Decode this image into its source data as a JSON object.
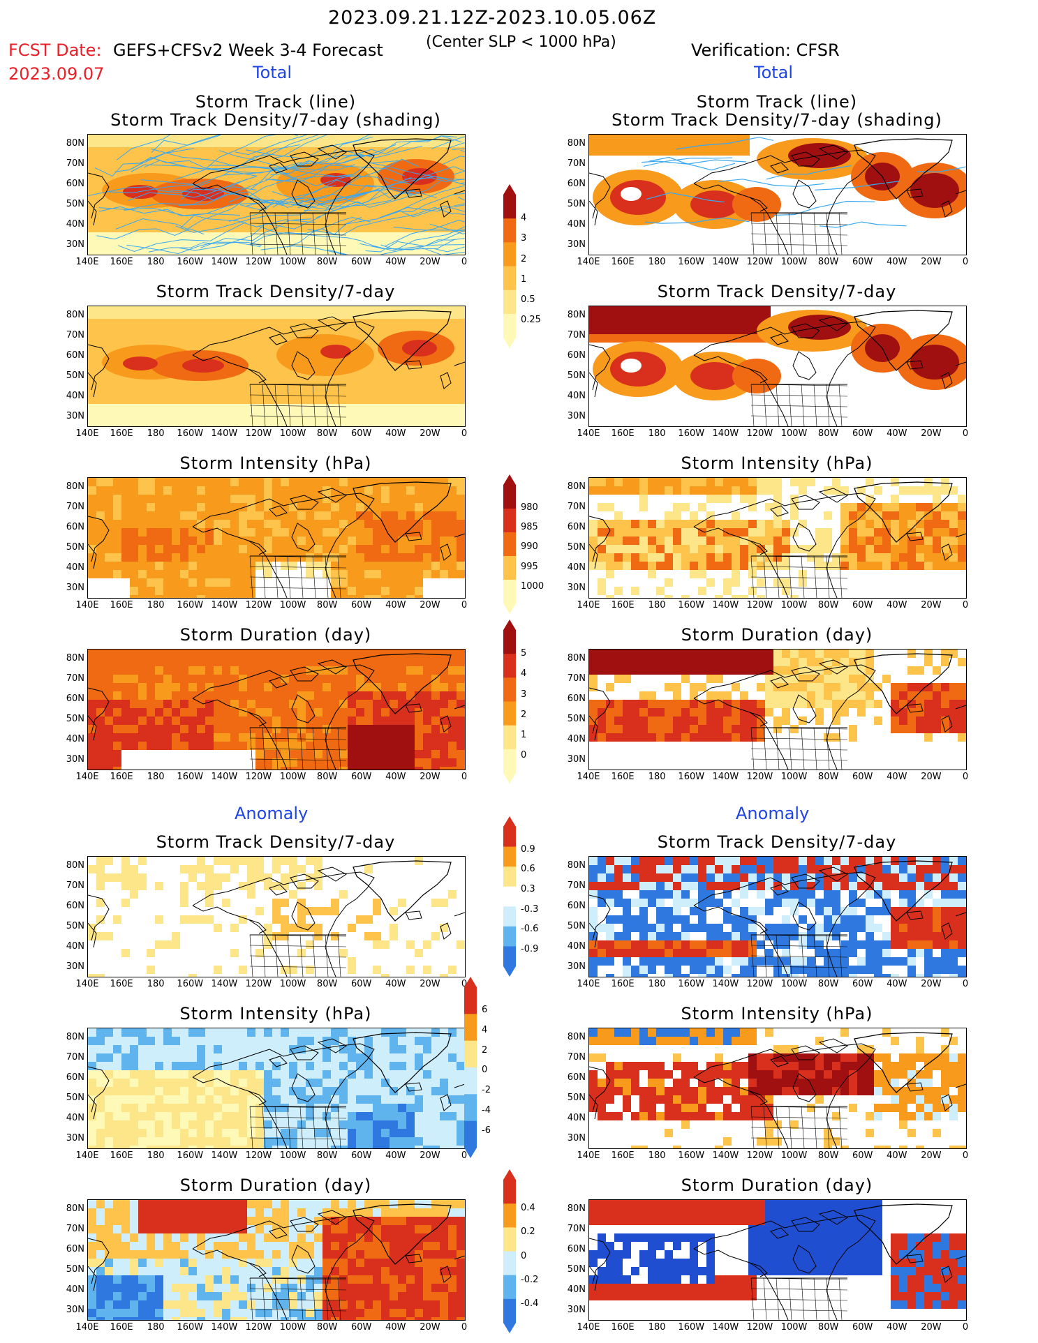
{
  "header": {
    "period": "2023.09.21.12Z-2023.10.05.06Z",
    "criterion": "(Center SLP < 1000 hPa)",
    "fcst_date_label": "FCST Date:",
    "fcst_date": "2023.09.07",
    "model": "GEFS+CFSv2 Week 3-4 Forecast",
    "verification": "Verification: CFSR"
  },
  "sections": {
    "total": "Total",
    "anomaly": "Anomaly"
  },
  "panel_titles": {
    "track_line": "Storm Track (line)",
    "track_shading": "Storm Track Density/7-day (shading)",
    "density": "Storm Track Density/7-day",
    "intensity": "Storm Intensity (hPa)",
    "duration": "Storm Duration (day)"
  },
  "axes": {
    "lat_ticks": [
      "80N",
      "70N",
      "60N",
      "50N",
      "40N",
      "30N"
    ],
    "lon_ticks": [
      "140E",
      "160E",
      "180",
      "160W",
      "140W",
      "120W",
      "100W",
      "80W",
      "60W",
      "40W",
      "20W",
      "0"
    ]
  },
  "colorbars": {
    "density_total": [
      "0.25",
      "0.5",
      "1",
      "2",
      "3",
      "4"
    ],
    "intensity_total": [
      "1000",
      "995",
      "990",
      "985",
      "980"
    ],
    "duration_total": [
      "0",
      "1",
      "2",
      "3",
      "4",
      "5"
    ],
    "density_anom": [
      "-0.9",
      "-0.6",
      "-0.3",
      "0.3",
      "0.6",
      "0.9"
    ],
    "intensity_anom": [
      "-6",
      "-4",
      "-2",
      "0",
      "2",
      "4",
      "6"
    ],
    "duration_anom": [
      "-0.4",
      "-0.2",
      "0",
      "0.2",
      "0.4"
    ]
  },
  "colors": {
    "warm": [
      "#fff9b8",
      "#fde58a",
      "#fdc34a",
      "#f89a1c",
      "#ef6a12",
      "#d8301c",
      "#a01010"
    ],
    "cool": [
      "#cfeefb",
      "#9fdcf6",
      "#5fb4ee",
      "#2f78e0",
      "#1f4fd0"
    ],
    "track_line_blue": "#3aa8f0",
    "header_red": "#e8202a",
    "section_blue": "#1f44e6"
  }
}
